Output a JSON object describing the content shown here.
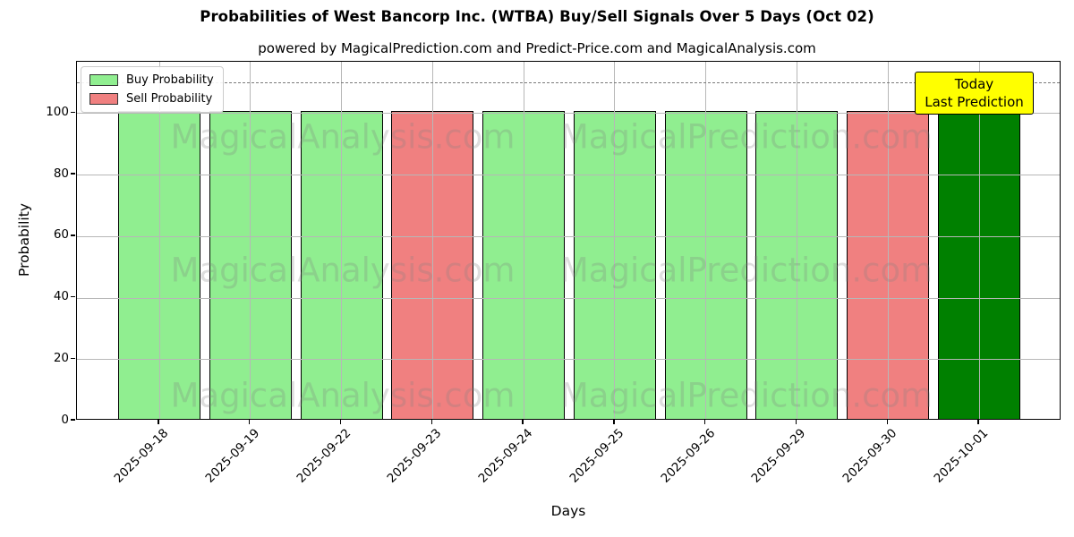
{
  "title": "Probabilities of West Bancorp Inc. (WTBA) Buy/Sell Signals Over 5 Days (Oct 02)",
  "subtitle": "powered by MagicalPrediction.com and Predict-Price.com and MagicalAnalysis.com",
  "axes": {
    "ylabel": "Probability",
    "xlabel": "Days"
  },
  "legend": {
    "items": [
      {
        "label": "Buy Probability",
        "color": "#90EE90"
      },
      {
        "label": "Sell Probability",
        "color": "#F08080"
      }
    ]
  },
  "annotation": {
    "line1": "Today",
    "line2": "Last Prediction",
    "bg_color": "#FFFF00"
  },
  "watermarks": {
    "left_text": "MagicalAnalysis.com",
    "right_text": "MagicalPrediction.com"
  },
  "colors": {
    "buy": "#90EE90",
    "sell": "#F08080",
    "today": "#008000",
    "grid": "#b7b7b7",
    "threshold": "#7a7a7a"
  },
  "chart_data": {
    "type": "bar",
    "title": "Probabilities of West Bancorp Inc. (WTBA) Buy/Sell Signals Over 5 Days (Oct 02)",
    "xlabel": "Days",
    "ylabel": "Probability",
    "ylim": [
      0,
      116.7
    ],
    "yticks": [
      0,
      20,
      40,
      60,
      80,
      100
    ],
    "grid": true,
    "legend_position": "upper-left",
    "threshold_line": {
      "y": 110,
      "style": "dashed"
    },
    "categories": [
      "2025-09-18",
      "2025-09-19",
      "2025-09-22",
      "2025-09-23",
      "2025-09-24",
      "2025-09-25",
      "2025-09-26",
      "2025-09-29",
      "2025-09-30",
      "2025-10-01"
    ],
    "series": [
      {
        "name": "Buy Probability",
        "values": [
          100,
          100,
          100,
          0,
          100,
          100,
          100,
          100,
          0,
          100
        ]
      },
      {
        "name": "Sell Probability",
        "values": [
          0,
          0,
          0,
          100,
          0,
          0,
          0,
          0,
          100,
          0
        ]
      }
    ],
    "bars": [
      {
        "date": "2025-09-18",
        "kind": "buy",
        "value": 100,
        "color": "#90EE90"
      },
      {
        "date": "2025-09-19",
        "kind": "buy",
        "value": 100,
        "color": "#90EE90"
      },
      {
        "date": "2025-09-22",
        "kind": "buy",
        "value": 100,
        "color": "#90EE90"
      },
      {
        "date": "2025-09-23",
        "kind": "sell",
        "value": 100,
        "color": "#F08080"
      },
      {
        "date": "2025-09-24",
        "kind": "buy",
        "value": 100,
        "color": "#90EE90"
      },
      {
        "date": "2025-09-25",
        "kind": "buy",
        "value": 100,
        "color": "#90EE90"
      },
      {
        "date": "2025-09-26",
        "kind": "buy",
        "value": 100,
        "color": "#90EE90"
      },
      {
        "date": "2025-09-29",
        "kind": "buy",
        "value": 100,
        "color": "#90EE90"
      },
      {
        "date": "2025-09-30",
        "kind": "sell",
        "value": 100,
        "color": "#F08080"
      },
      {
        "date": "2025-10-01",
        "kind": "buy-today",
        "value": 100,
        "color": "#008000"
      }
    ]
  }
}
